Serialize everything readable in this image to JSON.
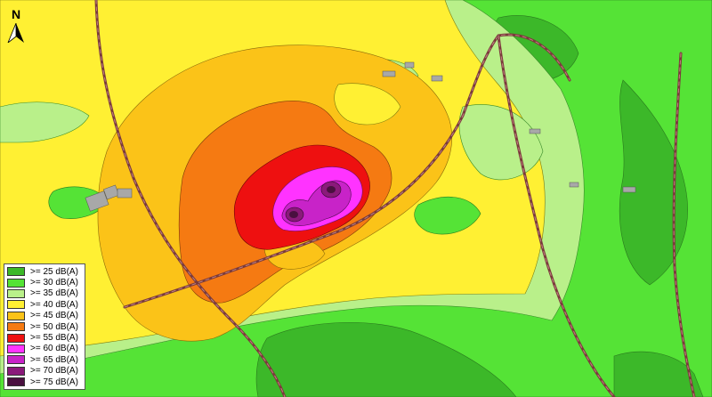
{
  "north_arrow": {
    "label": "N"
  },
  "legend": [
    {
      "label": ">= 25 dB(A)",
      "color": "#3cb829"
    },
    {
      "label": ">= 30 dB(A)",
      "color": "#55e336"
    },
    {
      "label": ">= 35 dB(A)",
      "color": "#b9f08a"
    },
    {
      "label": ">= 40 dB(A)",
      "color": "#fff033"
    },
    {
      "label": ">= 45 dB(A)",
      "color": "#fbc318"
    },
    {
      "label": ">= 50 dB(A)",
      "color": "#f57a12"
    },
    {
      "label": ">= 55 dB(A)",
      "color": "#ee1010"
    },
    {
      "label": ">= 60 dB(A)",
      "color": "#ff33ff"
    },
    {
      "label": ">= 65 dB(A)",
      "color": "#c823c8"
    },
    {
      "label": ">= 70 dB(A)",
      "color": "#8a1a7a"
    },
    {
      "label": ">= 75 dB(A)",
      "color": "#4a1040"
    }
  ],
  "colors": {
    "road": "#7a3b3b",
    "road_dash": "#c08080",
    "building": "#a8a8a8"
  }
}
